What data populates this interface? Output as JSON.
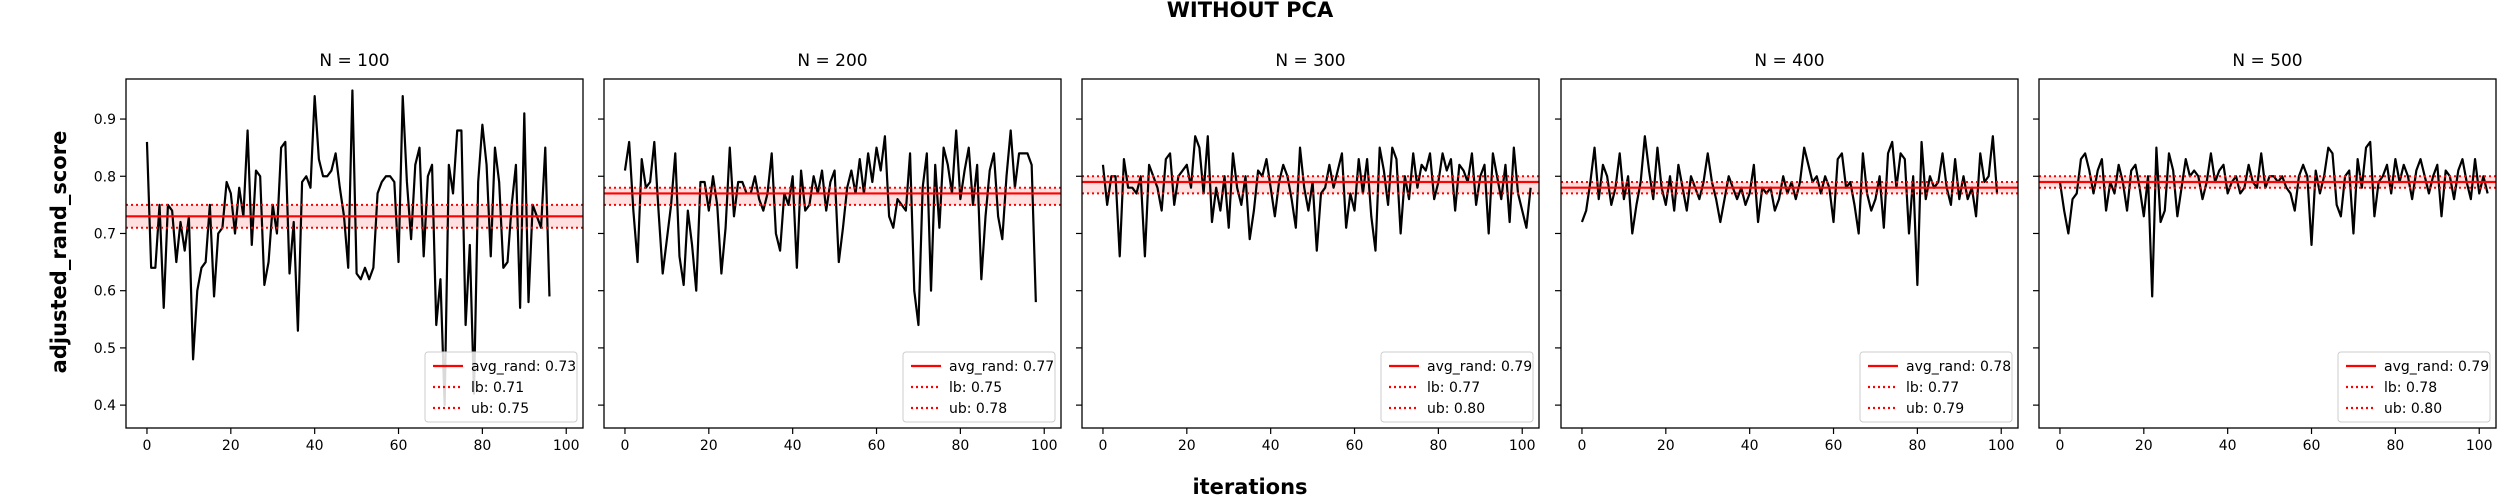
{
  "figure": {
    "suptitle": "WITHOUT PCA",
    "xlabel": "iterations",
    "ylabel": "adjusted_rand_score"
  },
  "colors": {
    "line": "#000000",
    "avg": "#ff0000",
    "band": "#ff0000"
  },
  "chart_data": [
    {
      "type": "line",
      "title": "N = 100",
      "xlim": [
        -5,
        104
      ],
      "ylim": [
        0.36,
        0.97
      ],
      "xticks": [
        0,
        20,
        40,
        60,
        80,
        100
      ],
      "yticks": [
        0.4,
        0.5,
        0.6,
        0.7,
        0.8,
        0.9
      ],
      "avg": 0.73,
      "lb": 0.71,
      "ub": 0.75,
      "legend": [
        "avg_rand: 0.73",
        "lb: 0.71",
        "ub: 0.75"
      ],
      "legend_loc": "lower right",
      "values": [
        0.86,
        0.64,
        0.64,
        0.75,
        0.57,
        0.75,
        0.74,
        0.65,
        0.72,
        0.67,
        0.73,
        0.48,
        0.6,
        0.64,
        0.65,
        0.75,
        0.59,
        0.7,
        0.71,
        0.79,
        0.77,
        0.7,
        0.78,
        0.73,
        0.88,
        0.68,
        0.81,
        0.8,
        0.61,
        0.65,
        0.75,
        0.7,
        0.85,
        0.86,
        0.63,
        0.72,
        0.53,
        0.79,
        0.8,
        0.78,
        0.94,
        0.83,
        0.8,
        0.8,
        0.81,
        0.84,
        0.78,
        0.73,
        0.64,
        0.95,
        0.63,
        0.62,
        0.64,
        0.62,
        0.64,
        0.77,
        0.79,
        0.8,
        0.8,
        0.79,
        0.65,
        0.94,
        0.79,
        0.69,
        0.82,
        0.85,
        0.66,
        0.8,
        0.82,
        0.54,
        0.62,
        0.4,
        0.82,
        0.77,
        0.88,
        0.88,
        0.54,
        0.68,
        0.42,
        0.79,
        0.89,
        0.82,
        0.66,
        0.85,
        0.79,
        0.64,
        0.65,
        0.75,
        0.82,
        0.57,
        0.91,
        0.58,
        0.75,
        0.73,
        0.71,
        0.85,
        0.59
      ],
      "x_start": 0
    },
    {
      "type": "line",
      "title": "N = 200",
      "xlim": [
        -5,
        104
      ],
      "ylim": [
        0.36,
        0.97
      ],
      "xticks": [
        0,
        20,
        40,
        60,
        80,
        100
      ],
      "yticks": [
        0.4,
        0.5,
        0.6,
        0.7,
        0.8,
        0.9
      ],
      "avg": 0.77,
      "lb": 0.75,
      "ub": 0.78,
      "legend": [
        "avg_rand: 0.77",
        "lb: 0.75",
        "ub: 0.78"
      ],
      "legend_loc": "lower right",
      "values": [
        0.81,
        0.86,
        0.74,
        0.65,
        0.83,
        0.78,
        0.79,
        0.86,
        0.74,
        0.63,
        0.69,
        0.75,
        0.84,
        0.66,
        0.61,
        0.74,
        0.68,
        0.6,
        0.79,
        0.79,
        0.74,
        0.8,
        0.75,
        0.63,
        0.71,
        0.85,
        0.73,
        0.79,
        0.79,
        0.77,
        0.77,
        0.8,
        0.76,
        0.74,
        0.77,
        0.84,
        0.7,
        0.67,
        0.77,
        0.75,
        0.8,
        0.64,
        0.81,
        0.74,
        0.75,
        0.8,
        0.77,
        0.81,
        0.74,
        0.79,
        0.81,
        0.65,
        0.71,
        0.78,
        0.81,
        0.77,
        0.83,
        0.77,
        0.84,
        0.79,
        0.85,
        0.81,
        0.87,
        0.73,
        0.71,
        0.76,
        0.75,
        0.74,
        0.84,
        0.6,
        0.54,
        0.78,
        0.84,
        0.6,
        0.82,
        0.71,
        0.85,
        0.82,
        0.77,
        0.88,
        0.76,
        0.81,
        0.85,
        0.75,
        0.82,
        0.62,
        0.73,
        0.81,
        0.84,
        0.73,
        0.69,
        0.8,
        0.88,
        0.78,
        0.84,
        0.84,
        0.84,
        0.82,
        0.58
      ],
      "x_start": 0
    },
    {
      "type": "line",
      "title": "N = 300",
      "xlim": [
        -5,
        104
      ],
      "ylim": [
        0.36,
        0.97
      ],
      "xticks": [
        0,
        20,
        40,
        60,
        80,
        100
      ],
      "yticks": [
        0.4,
        0.5,
        0.6,
        0.7,
        0.8,
        0.9
      ],
      "avg": 0.79,
      "lb": 0.77,
      "ub": 0.8,
      "legend": [
        "avg_rand: 0.79",
        "lb: 0.77",
        "ub: 0.80"
      ],
      "legend_loc": "lower right",
      "values": [
        0.82,
        0.75,
        0.8,
        0.8,
        0.66,
        0.83,
        0.78,
        0.78,
        0.77,
        0.8,
        0.66,
        0.82,
        0.8,
        0.78,
        0.74,
        0.83,
        0.84,
        0.75,
        0.8,
        0.81,
        0.82,
        0.78,
        0.87,
        0.85,
        0.77,
        0.87,
        0.72,
        0.78,
        0.74,
        0.8,
        0.71,
        0.84,
        0.78,
        0.75,
        0.8,
        0.69,
        0.74,
        0.81,
        0.8,
        0.83,
        0.78,
        0.73,
        0.79,
        0.82,
        0.8,
        0.76,
        0.71,
        0.85,
        0.78,
        0.74,
        0.79,
        0.67,
        0.77,
        0.78,
        0.82,
        0.78,
        0.81,
        0.84,
        0.71,
        0.77,
        0.74,
        0.83,
        0.77,
        0.83,
        0.73,
        0.67,
        0.85,
        0.81,
        0.75,
        0.85,
        0.83,
        0.7,
        0.8,
        0.76,
        0.84,
        0.78,
        0.82,
        0.81,
        0.84,
        0.76,
        0.79,
        0.84,
        0.81,
        0.83,
        0.74,
        0.82,
        0.81,
        0.79,
        0.84,
        0.75,
        0.8,
        0.82,
        0.7,
        0.84,
        0.8,
        0.76,
        0.82,
        0.72,
        0.85,
        0.77,
        0.74,
        0.71,
        0.78
      ],
      "x_start": 0
    },
    {
      "type": "line",
      "title": "N = 400",
      "xlim": [
        -5,
        104
      ],
      "ylim": [
        0.36,
        0.97
      ],
      "xticks": [
        0,
        20,
        40,
        60,
        80,
        100
      ],
      "yticks": [
        0.4,
        0.5,
        0.6,
        0.7,
        0.8,
        0.9
      ],
      "avg": 0.78,
      "lb": 0.77,
      "ub": 0.79,
      "legend": [
        "avg_rand: 0.78",
        "lb: 0.77",
        "ub: 0.79"
      ],
      "legend_loc": "lower right",
      "values": [
        0.72,
        0.74,
        0.79,
        0.85,
        0.76,
        0.82,
        0.8,
        0.75,
        0.78,
        0.84,
        0.76,
        0.8,
        0.7,
        0.75,
        0.79,
        0.87,
        0.81,
        0.76,
        0.85,
        0.78,
        0.75,
        0.8,
        0.74,
        0.82,
        0.78,
        0.74,
        0.8,
        0.78,
        0.76,
        0.79,
        0.84,
        0.79,
        0.76,
        0.72,
        0.76,
        0.8,
        0.78,
        0.76,
        0.78,
        0.75,
        0.77,
        0.82,
        0.72,
        0.78,
        0.77,
        0.78,
        0.74,
        0.76,
        0.8,
        0.77,
        0.79,
        0.76,
        0.79,
        0.85,
        0.82,
        0.79,
        0.8,
        0.77,
        0.8,
        0.78,
        0.72,
        0.83,
        0.84,
        0.78,
        0.79,
        0.75,
        0.7,
        0.84,
        0.77,
        0.74,
        0.76,
        0.8,
        0.71,
        0.84,
        0.86,
        0.78,
        0.84,
        0.83,
        0.7,
        0.8,
        0.61,
        0.86,
        0.76,
        0.8,
        0.78,
        0.79,
        0.84,
        0.78,
        0.75,
        0.83,
        0.76,
        0.8,
        0.76,
        0.78,
        0.73,
        0.84,
        0.79,
        0.8,
        0.87,
        0.77
      ],
      "x_start": 0
    },
    {
      "type": "line",
      "title": "N = 500",
      "xlim": [
        -5,
        104
      ],
      "ylim": [
        0.36,
        0.97
      ],
      "xticks": [
        0,
        20,
        40,
        60,
        80,
        100
      ],
      "yticks": [
        0.4,
        0.5,
        0.6,
        0.7,
        0.8,
        0.9
      ],
      "avg": 0.79,
      "lb": 0.78,
      "ub": 0.8,
      "legend": [
        "avg_rand: 0.79",
        "lb: 0.78",
        "ub: 0.80"
      ],
      "legend_loc": "lower right",
      "values": [
        0.79,
        0.74,
        0.7,
        0.76,
        0.77,
        0.83,
        0.84,
        0.81,
        0.77,
        0.81,
        0.83,
        0.74,
        0.79,
        0.77,
        0.82,
        0.79,
        0.74,
        0.81,
        0.82,
        0.78,
        0.73,
        0.8,
        0.59,
        0.85,
        0.72,
        0.74,
        0.84,
        0.81,
        0.73,
        0.78,
        0.83,
        0.8,
        0.81,
        0.8,
        0.76,
        0.79,
        0.84,
        0.79,
        0.81,
        0.82,
        0.77,
        0.79,
        0.8,
        0.77,
        0.78,
        0.82,
        0.79,
        0.78,
        0.84,
        0.78,
        0.8,
        0.8,
        0.79,
        0.8,
        0.78,
        0.77,
        0.74,
        0.8,
        0.82,
        0.8,
        0.68,
        0.81,
        0.77,
        0.8,
        0.85,
        0.84,
        0.75,
        0.73,
        0.8,
        0.81,
        0.7,
        0.83,
        0.78,
        0.85,
        0.86,
        0.73,
        0.79,
        0.8,
        0.82,
        0.77,
        0.83,
        0.79,
        0.82,
        0.8,
        0.76,
        0.81,
        0.83,
        0.8,
        0.77,
        0.8,
        0.82,
        0.73,
        0.81,
        0.8,
        0.76,
        0.81,
        0.83,
        0.79,
        0.76,
        0.83,
        0.77,
        0.8,
        0.77
      ],
      "x_start": 0
    }
  ]
}
